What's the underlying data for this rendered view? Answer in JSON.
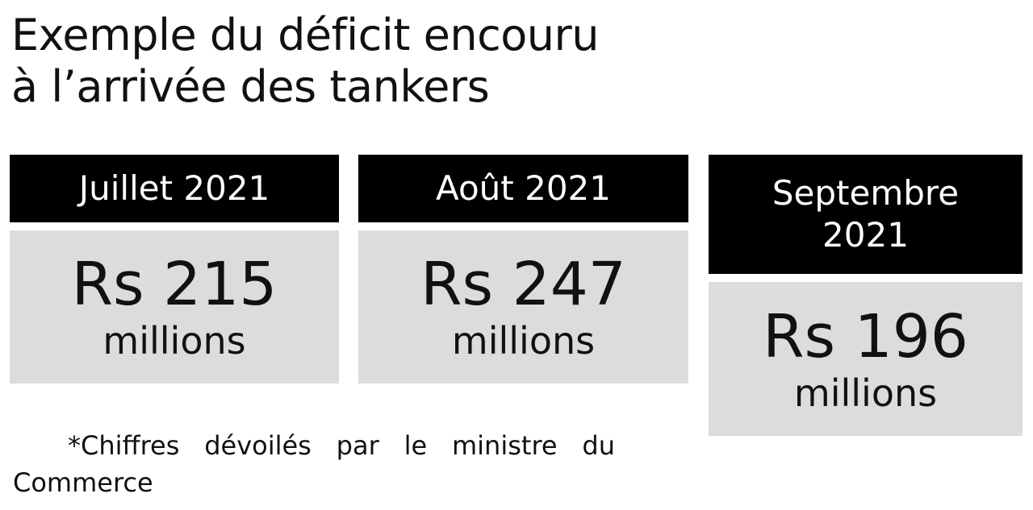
{
  "title_line1": "Exemple du déficit encouru",
  "title_line2": "à l’arrivée des tankers",
  "cards": [
    {
      "month": "Juillet 2021",
      "value": "Rs 215",
      "unit": "millions"
    },
    {
      "month": "Août 2021",
      "value": "Rs 247",
      "unit": "millions"
    },
    {
      "month": "Septembre 2021",
      "value": "Rs 196",
      "unit": "millions"
    }
  ],
  "footnote": "*Chiffres dévoilés par le ministre du Commerce",
  "colors": {
    "header_bg": "#000000",
    "header_text": "#ffffff",
    "value_bg": "#dcdcdd"
  }
}
